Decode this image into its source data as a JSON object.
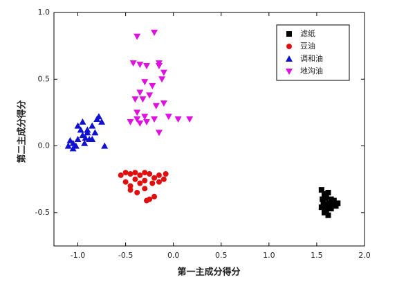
{
  "chart_data": {
    "type": "scatter",
    "x_label": "第一主成分得分",
    "y_label": "第二主成分得分",
    "xlim": [
      -1.25,
      2.0
    ],
    "ylim": [
      -0.75,
      1.0
    ],
    "xticks": [
      {
        "value": -1.0,
        "label": "-1.0"
      },
      {
        "value": -0.5,
        "label": "-0.5"
      },
      {
        "value": 0.0,
        "label": "0.0"
      },
      {
        "value": 0.5,
        "label": "0.5"
      },
      {
        "value": 1.0,
        "label": "1.0"
      },
      {
        "value": 1.5,
        "label": "1.5"
      },
      {
        "value": 2.0,
        "label": "2.0"
      }
    ],
    "yticks": [
      {
        "value": -0.5,
        "label": "-0.5"
      },
      {
        "value": 0.0,
        "label": "0.0"
      },
      {
        "value": 0.5,
        "label": "0.5"
      },
      {
        "value": 1.0,
        "label": "1.0"
      }
    ],
    "grid": false,
    "legend": "upper right",
    "series": [
      {
        "name": "滤纸",
        "color": "#000000",
        "marker": "square",
        "x": [
          1.55,
          1.58,
          1.6,
          1.62,
          1.65,
          1.57,
          1.6,
          1.63,
          1.68,
          1.7,
          1.55,
          1.6,
          1.65,
          1.58,
          1.62,
          1.66,
          1.59,
          1.61,
          1.72,
          1.56
        ],
        "values": [
          -0.33,
          -0.36,
          -0.38,
          -0.35,
          -0.4,
          -0.42,
          -0.44,
          -0.43,
          -0.41,
          -0.45,
          -0.46,
          -0.48,
          -0.47,
          -0.5,
          -0.52,
          -0.44,
          -0.39,
          -0.46,
          -0.43,
          -0.4
        ]
      },
      {
        "name": "豆油",
        "color": "#e01010",
        "marker": "circle",
        "x": [
          -0.55,
          -0.5,
          -0.45,
          -0.4,
          -0.35,
          -0.3,
          -0.25,
          -0.2,
          -0.15,
          -0.08,
          -0.5,
          -0.45,
          -0.4,
          -0.35,
          -0.3,
          -0.22,
          -0.15,
          -0.45,
          -0.38,
          -0.3,
          -0.25,
          -0.2,
          -0.1,
          -0.28
        ],
        "values": [
          -0.22,
          -0.2,
          -0.21,
          -0.2,
          -0.22,
          -0.2,
          -0.21,
          -0.24,
          -0.22,
          -0.21,
          -0.27,
          -0.3,
          -0.25,
          -0.28,
          -0.26,
          -0.28,
          -0.27,
          -0.33,
          -0.35,
          -0.32,
          -0.4,
          -0.38,
          -0.25,
          -0.41
        ]
      },
      {
        "name": "调和油",
        "color": "#1010d0",
        "marker": "triangle-up",
        "x": [
          -1.1,
          -1.05,
          -1.0,
          -0.95,
          -0.9,
          -0.85,
          -0.8,
          -0.75,
          -1.08,
          -1.02,
          -0.97,
          -0.92,
          -0.88,
          -0.82,
          -0.78,
          -1.0,
          -0.95,
          -0.9,
          -0.85,
          -0.72,
          -1.05,
          -0.93
        ],
        "values": [
          0.0,
          0.02,
          0.05,
          0.08,
          0.1,
          0.15,
          0.2,
          0.18,
          0.04,
          0.0,
          0.12,
          0.06,
          0.05,
          0.1,
          0.22,
          0.15,
          0.18,
          0.12,
          0.05,
          0.0,
          -0.02,
          0.02
        ]
      },
      {
        "name": "地沟油",
        "color": "#e010e0",
        "marker": "triangle-down",
        "x": [
          -0.38,
          -0.2,
          -0.15,
          -0.1,
          -0.42,
          -0.35,
          -0.28,
          -0.15,
          -0.12,
          -0.3,
          -0.22,
          -0.35,
          -0.4,
          -0.32,
          -0.25,
          -0.18,
          -0.1,
          -0.05,
          0.05,
          0.17,
          -0.45,
          -0.38,
          -0.3,
          -0.2,
          -0.15,
          -0.35,
          -0.28,
          -0.38
        ],
        "values": [
          0.82,
          0.85,
          0.6,
          0.55,
          0.62,
          0.61,
          0.6,
          0.62,
          0.5,
          0.48,
          0.45,
          0.4,
          0.35,
          0.35,
          0.38,
          0.3,
          0.32,
          0.22,
          0.2,
          0.2,
          0.18,
          0.2,
          0.22,
          0.2,
          0.1,
          0.17,
          0.18,
          0.25
        ]
      }
    ]
  }
}
